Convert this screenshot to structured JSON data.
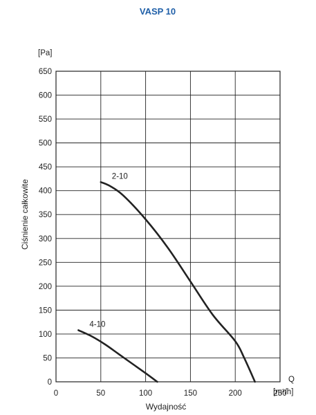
{
  "chart_data": {
    "type": "line",
    "title": "VASP 10",
    "xlabel": "Wydajność",
    "ylabel": "Ciśnienie całkowite",
    "x_unit_label": "Q",
    "x_unit": "[m³/h]",
    "y_unit": "[Pa]",
    "xlim": [
      0,
      250
    ],
    "ylim": [
      0,
      650
    ],
    "x_ticks": [
      0,
      50,
      100,
      150,
      200,
      250
    ],
    "y_ticks": [
      0,
      50,
      100,
      150,
      200,
      250,
      300,
      350,
      400,
      450,
      500,
      550,
      600,
      650
    ],
    "grid": true,
    "series": [
      {
        "name": "2-10",
        "x": [
          50,
          60,
          75,
          100,
          125,
          150,
          175,
          200,
          210,
          222
        ],
        "y": [
          418,
          410,
          390,
          340,
          280,
          210,
          140,
          85,
          50,
          0
        ]
      },
      {
        "name": "4-10",
        "x": [
          25,
          40,
          55,
          70,
          85,
          100,
          113
        ],
        "y": [
          108,
          95,
          78,
          58,
          38,
          18,
          0
        ]
      }
    ]
  }
}
